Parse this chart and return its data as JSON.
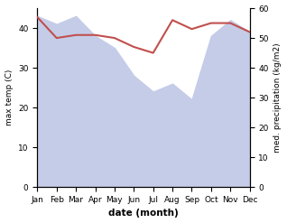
{
  "months": [
    "Jan",
    "Feb",
    "Mar",
    "Apr",
    "May",
    "Jun",
    "Jul",
    "Aug",
    "Sep",
    "Oct",
    "Nov",
    "Dec"
  ],
  "month_indices": [
    0,
    1,
    2,
    3,
    4,
    5,
    6,
    7,
    8,
    9,
    10,
    11
  ],
  "max_temp": [
    43,
    41,
    43,
    38,
    35,
    28,
    24,
    26,
    22,
    38,
    42,
    39
  ],
  "precipitation": [
    57,
    50,
    51,
    51,
    50,
    47,
    45,
    56,
    53,
    55,
    55,
    52
  ],
  "temp_color": "#c0504d",
  "precip_fill_color": "#aab4d8",
  "temp_fill_color": "#c5cce8",
  "temp_ylim": [
    0,
    45
  ],
  "precip_ylim": [
    0,
    60
  ],
  "temp_yticks": [
    0,
    10,
    20,
    30,
    40
  ],
  "precip_yticks": [
    0,
    10,
    20,
    30,
    40,
    50,
    60
  ],
  "xlabel": "date (month)",
  "ylabel_left": "max temp (C)",
  "ylabel_right": "med. precipitation (kg/m2)"
}
